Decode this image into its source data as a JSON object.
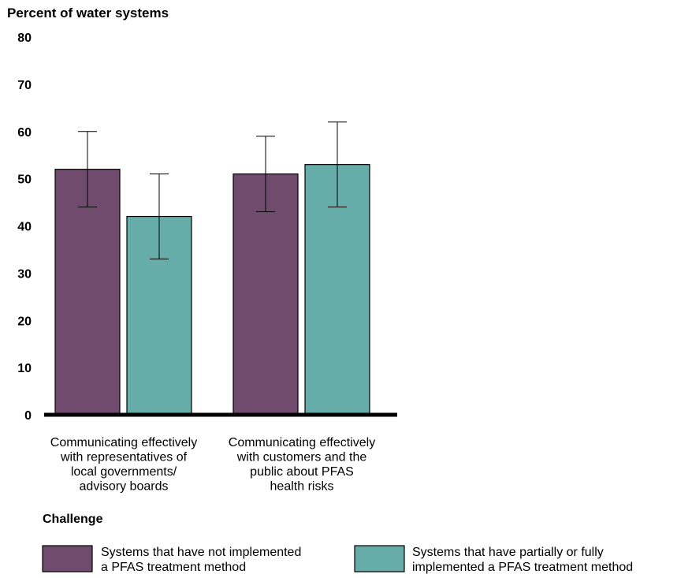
{
  "chart_data": {
    "type": "bar",
    "ylabel": "Percent of water systems",
    "xlabel": "Challenge",
    "ylim": [
      0,
      80
    ],
    "yticks": [
      0,
      10,
      20,
      30,
      40,
      50,
      60,
      70,
      80
    ],
    "grid": false,
    "legend_position": "bottom",
    "categories": [
      [
        "Communicating effectively",
        "with representatives of",
        "local governments/",
        "advisory boards"
      ],
      [
        "Communicating effectively",
        "with customers and the",
        "public about PFAS",
        "health risks"
      ]
    ],
    "series": [
      {
        "name": [
          "Systems that have not implemented",
          "a PFAS treatment method"
        ],
        "color": "#704b6d",
        "values": [
          52,
          51
        ],
        "error_low": [
          44,
          43
        ],
        "error_high": [
          60,
          59
        ]
      },
      {
        "name": [
          "Systems that have partially or fully",
          "implemented a PFAS treatment method"
        ],
        "color": "#66ada9",
        "values": [
          42,
          53
        ],
        "error_low": [
          33,
          44
        ],
        "error_high": [
          51,
          62
        ]
      }
    ]
  }
}
